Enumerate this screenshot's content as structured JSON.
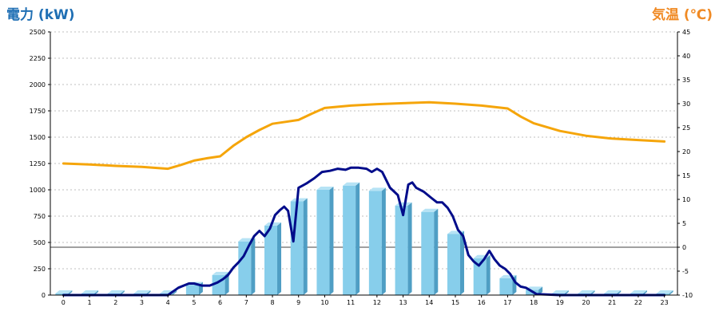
{
  "titles": {
    "left": "電力 (kW)",
    "right": "気温 (℃)"
  },
  "colors": {
    "left_title": "#1f6fb4",
    "right_title": "#f08a24",
    "bar_front": "#87ceeb",
    "bar_side": "#4f9ec4",
    "bar_top": "#b6e3f5",
    "power_line": "#000c8a",
    "temp_line": "#f5a50a",
    "grid": "#bfbfbf"
  },
  "chart_data": {
    "type": "bar",
    "categories": [
      "0",
      "1",
      "2",
      "3",
      "4",
      "5",
      "6",
      "7",
      "8",
      "9",
      "10",
      "11",
      "12",
      "13",
      "14",
      "15",
      "16",
      "17",
      "18",
      "19",
      "20",
      "21",
      "22",
      "23"
    ],
    "y_left": {
      "label": "電力 (kW)",
      "range": [
        0,
        2500
      ],
      "ticks": [
        0,
        250,
        500,
        750,
        1000,
        1250,
        1500,
        1750,
        2000,
        2250,
        2500
      ]
    },
    "y_right": {
      "label": "気温 (℃)",
      "range": [
        -10,
        45
      ],
      "ticks": [
        -10,
        -5,
        0,
        5,
        10,
        15,
        20,
        25,
        30,
        35,
        40,
        45
      ]
    },
    "grid": "horizontal-dashed",
    "bars": {
      "axis": "left",
      "values": [
        5,
        5,
        5,
        5,
        5,
        95,
        190,
        510,
        660,
        890,
        1000,
        1040,
        990,
        850,
        790,
        580,
        350,
        160,
        50,
        5,
        5,
        5,
        5,
        5
      ]
    },
    "power_line": {
      "axis": "left",
      "x": [
        0,
        1,
        2,
        3,
        4,
        4.4,
        4.8,
        5,
        5.3,
        5.6,
        5.9,
        6.1,
        6.3,
        6.5,
        6.7,
        6.9,
        7.1,
        7.3,
        7.5,
        7.7,
        7.9,
        8.1,
        8.3,
        8.45,
        8.6,
        8.8,
        9,
        9.3,
        9.6,
        9.9,
        10.2,
        10.5,
        10.8,
        11,
        11.3,
        11.6,
        11.8,
        12,
        12.2,
        12.5,
        12.8,
        13,
        13.2,
        13.35,
        13.5,
        13.8,
        14.1,
        14.3,
        14.5,
        14.7,
        14.9,
        15.1,
        15.3,
        15.5,
        15.7,
        15.9,
        16.1,
        16.3,
        16.5,
        16.7,
        16.9,
        17.1,
        17.3,
        17.5,
        17.7,
        17.9,
        18.1,
        19,
        20,
        21,
        22,
        23
      ],
      "values": [
        0,
        0,
        0,
        0,
        0,
        70,
        110,
        110,
        90,
        90,
        120,
        150,
        190,
        260,
        310,
        370,
        470,
        560,
        610,
        560,
        630,
        760,
        810,
        840,
        800,
        510,
        1020,
        1060,
        1110,
        1170,
        1180,
        1200,
        1190,
        1210,
        1210,
        1200,
        1170,
        1200,
        1170,
        1020,
        950,
        760,
        1050,
        1070,
        1020,
        980,
        920,
        880,
        880,
        830,
        750,
        620,
        560,
        380,
        320,
        280,
        340,
        420,
        340,
        280,
        250,
        200,
        120,
        80,
        70,
        40,
        10,
        0,
        0,
        0,
        0,
        0
      ]
    },
    "temp_line": {
      "axis": "right",
      "x": [
        0,
        1,
        2,
        3,
        4,
        4.5,
        5,
        5.5,
        6,
        6.5,
        7,
        7.5,
        8,
        8.5,
        9,
        9.5,
        10,
        11,
        12,
        13,
        14,
        15,
        16,
        17,
        17.5,
        18,
        19,
        20,
        21,
        22,
        23
      ],
      "values": [
        17.5,
        17.3,
        17.0,
        16.8,
        16.4,
        17.2,
        18.1,
        18.6,
        19.0,
        21.2,
        23.0,
        24.5,
        25.8,
        26.2,
        26.6,
        27.9,
        29.1,
        29.6,
        29.9,
        30.1,
        30.3,
        30.0,
        29.6,
        29.0,
        27.3,
        25.9,
        24.3,
        23.3,
        22.7,
        22.4,
        22.1
      ]
    }
  }
}
